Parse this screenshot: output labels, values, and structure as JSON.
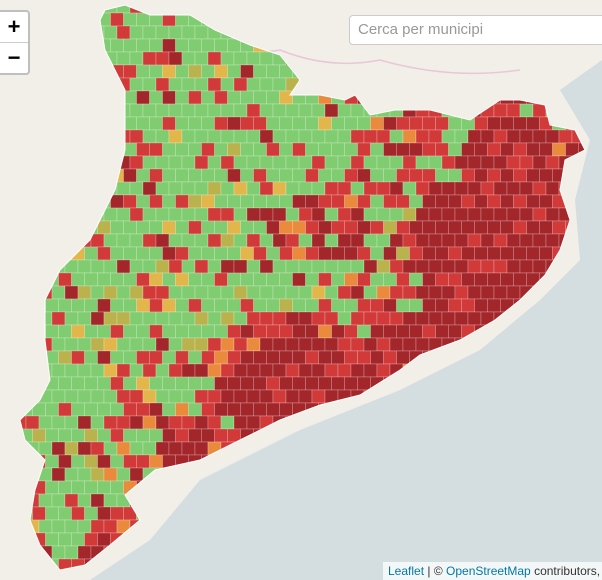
{
  "zoom": {
    "in": "+",
    "out": "−"
  },
  "search": {
    "placeholder": "Cerca per municipi"
  },
  "attribution": {
    "leaflet": "Leaflet",
    "separator": "| ©",
    "osm": "OpenStreetMap",
    "rest": "contributors, © C"
  }
}
